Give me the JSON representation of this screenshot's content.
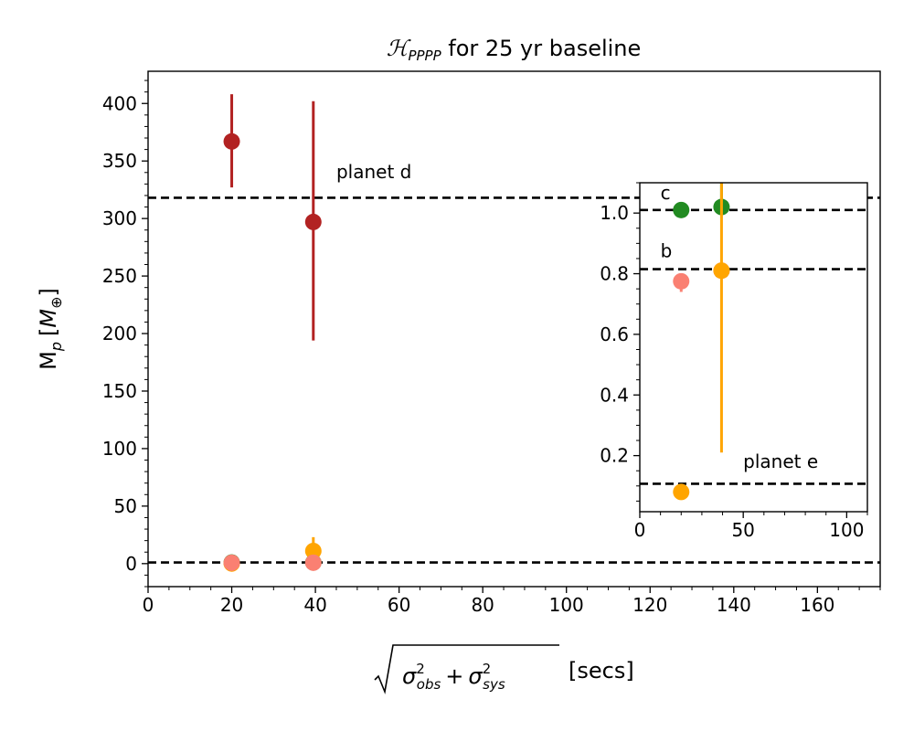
{
  "chart_data": [
    {
      "type": "scatter",
      "role": "main",
      "title_prefix": "ℋ",
      "title_subscript": "PPPP",
      "title_suffix": " for 25 yr baseline",
      "xlabel_radicand": {
        "term1_base": "σ",
        "term1_sup": "2",
        "term1_sub": "obs",
        "operator": "+",
        "term2_base": "σ",
        "term2_sup": "2",
        "term2_sub": "sys"
      },
      "xlabel_suffix": "[secs]",
      "ylabel_prefix": "M",
      "ylabel_sub": "p",
      "ylabel_unit_open": "[",
      "ylabel_unit_base": "M",
      "ylabel_unit_sub": "⊕",
      "ylabel_unit_close": "]",
      "xlim": [
        0,
        175
      ],
      "ylim": [
        -20,
        428
      ],
      "x_ticks": [
        0,
        20,
        40,
        60,
        80,
        100,
        120,
        140,
        160
      ],
      "x_tick_labels": [
        "0",
        "20",
        "40",
        "60",
        "80",
        "100",
        "120",
        "140",
        "160"
      ],
      "y_ticks": [
        0,
        50,
        100,
        150,
        200,
        250,
        300,
        350,
        400
      ],
      "y_tick_labels": [
        "0",
        "50",
        "100",
        "150",
        "200",
        "250",
        "300",
        "350",
        "400"
      ],
      "grid": false,
      "reference_lines": [
        {
          "y": 318,
          "style": "dashed",
          "color": "#000000"
        },
        {
          "y": 1.0,
          "style": "dashed",
          "color": "#000000"
        }
      ],
      "annotations": [
        {
          "text": "planet d",
          "x": 45,
          "y": 335
        }
      ],
      "series": [
        {
          "color": "#b22222",
          "x": [
            20,
            39.5
          ],
          "y": [
            367,
            297
          ],
          "yerr_low": [
            40,
            103
          ],
          "yerr_high": [
            41,
            105
          ]
        },
        {
          "color": "#228b22",
          "x": [
            20,
            39.5
          ],
          "y": [
            1.0,
            1.0
          ],
          "yerr_low": [
            0,
            0
          ],
          "yerr_high": [
            0,
            0
          ]
        },
        {
          "color": "#ffa500",
          "x": [
            20,
            39.5
          ],
          "y": [
            0.1,
            11
          ],
          "yerr_low": [
            0,
            4
          ],
          "yerr_high": [
            0,
            12
          ]
        },
        {
          "color": "#fa8072",
          "x": [
            20,
            39.5
          ],
          "y": [
            0.8,
            0.8
          ],
          "yerr_low": [
            0,
            0
          ],
          "yerr_high": [
            0,
            0
          ]
        }
      ]
    },
    {
      "type": "scatter",
      "role": "inset",
      "xlim": [
        0,
        110
      ],
      "ylim": [
        0.015,
        1.1
      ],
      "x_ticks": [
        0,
        50,
        100
      ],
      "x_tick_labels": [
        "0",
        "50",
        "100"
      ],
      "y_ticks": [
        0.2,
        0.4,
        0.6,
        0.8,
        1.0
      ],
      "y_tick_labels": [
        "0.2",
        "0.4",
        "0.6",
        "0.8",
        "1.0"
      ],
      "reference_lines": [
        {
          "y": 1.01,
          "style": "dashed",
          "color": "#000000"
        },
        {
          "y": 0.815,
          "style": "dashed",
          "color": "#000000"
        },
        {
          "y": 0.107,
          "style": "dashed",
          "color": "#000000"
        }
      ],
      "annotations": [
        {
          "text": "c",
          "x": 10,
          "y": 1.045
        },
        {
          "text": "b",
          "x": 10,
          "y": 0.855
        },
        {
          "text": "planet e",
          "x": 50,
          "y": 0.16
        }
      ],
      "series": [
        {
          "color": "#228b22",
          "x": [
            20,
            39.5
          ],
          "y": [
            1.01,
            1.02
          ],
          "yerr_low": [
            0,
            0
          ],
          "yerr_high": [
            0,
            0.09
          ]
        },
        {
          "color": "#fa8072",
          "x": [
            20,
            39.5
          ],
          "y": [
            0.775,
            0.81
          ],
          "yerr_low": [
            0.035,
            0
          ],
          "yerr_high": [
            0.01,
            0
          ]
        },
        {
          "color": "#ffa500",
          "x": [
            20,
            39.5
          ],
          "y": [
            0.08,
            0.81
          ],
          "yerr_low": [
            0,
            0.6
          ],
          "yerr_high": [
            0,
            0.3
          ]
        }
      ]
    }
  ]
}
